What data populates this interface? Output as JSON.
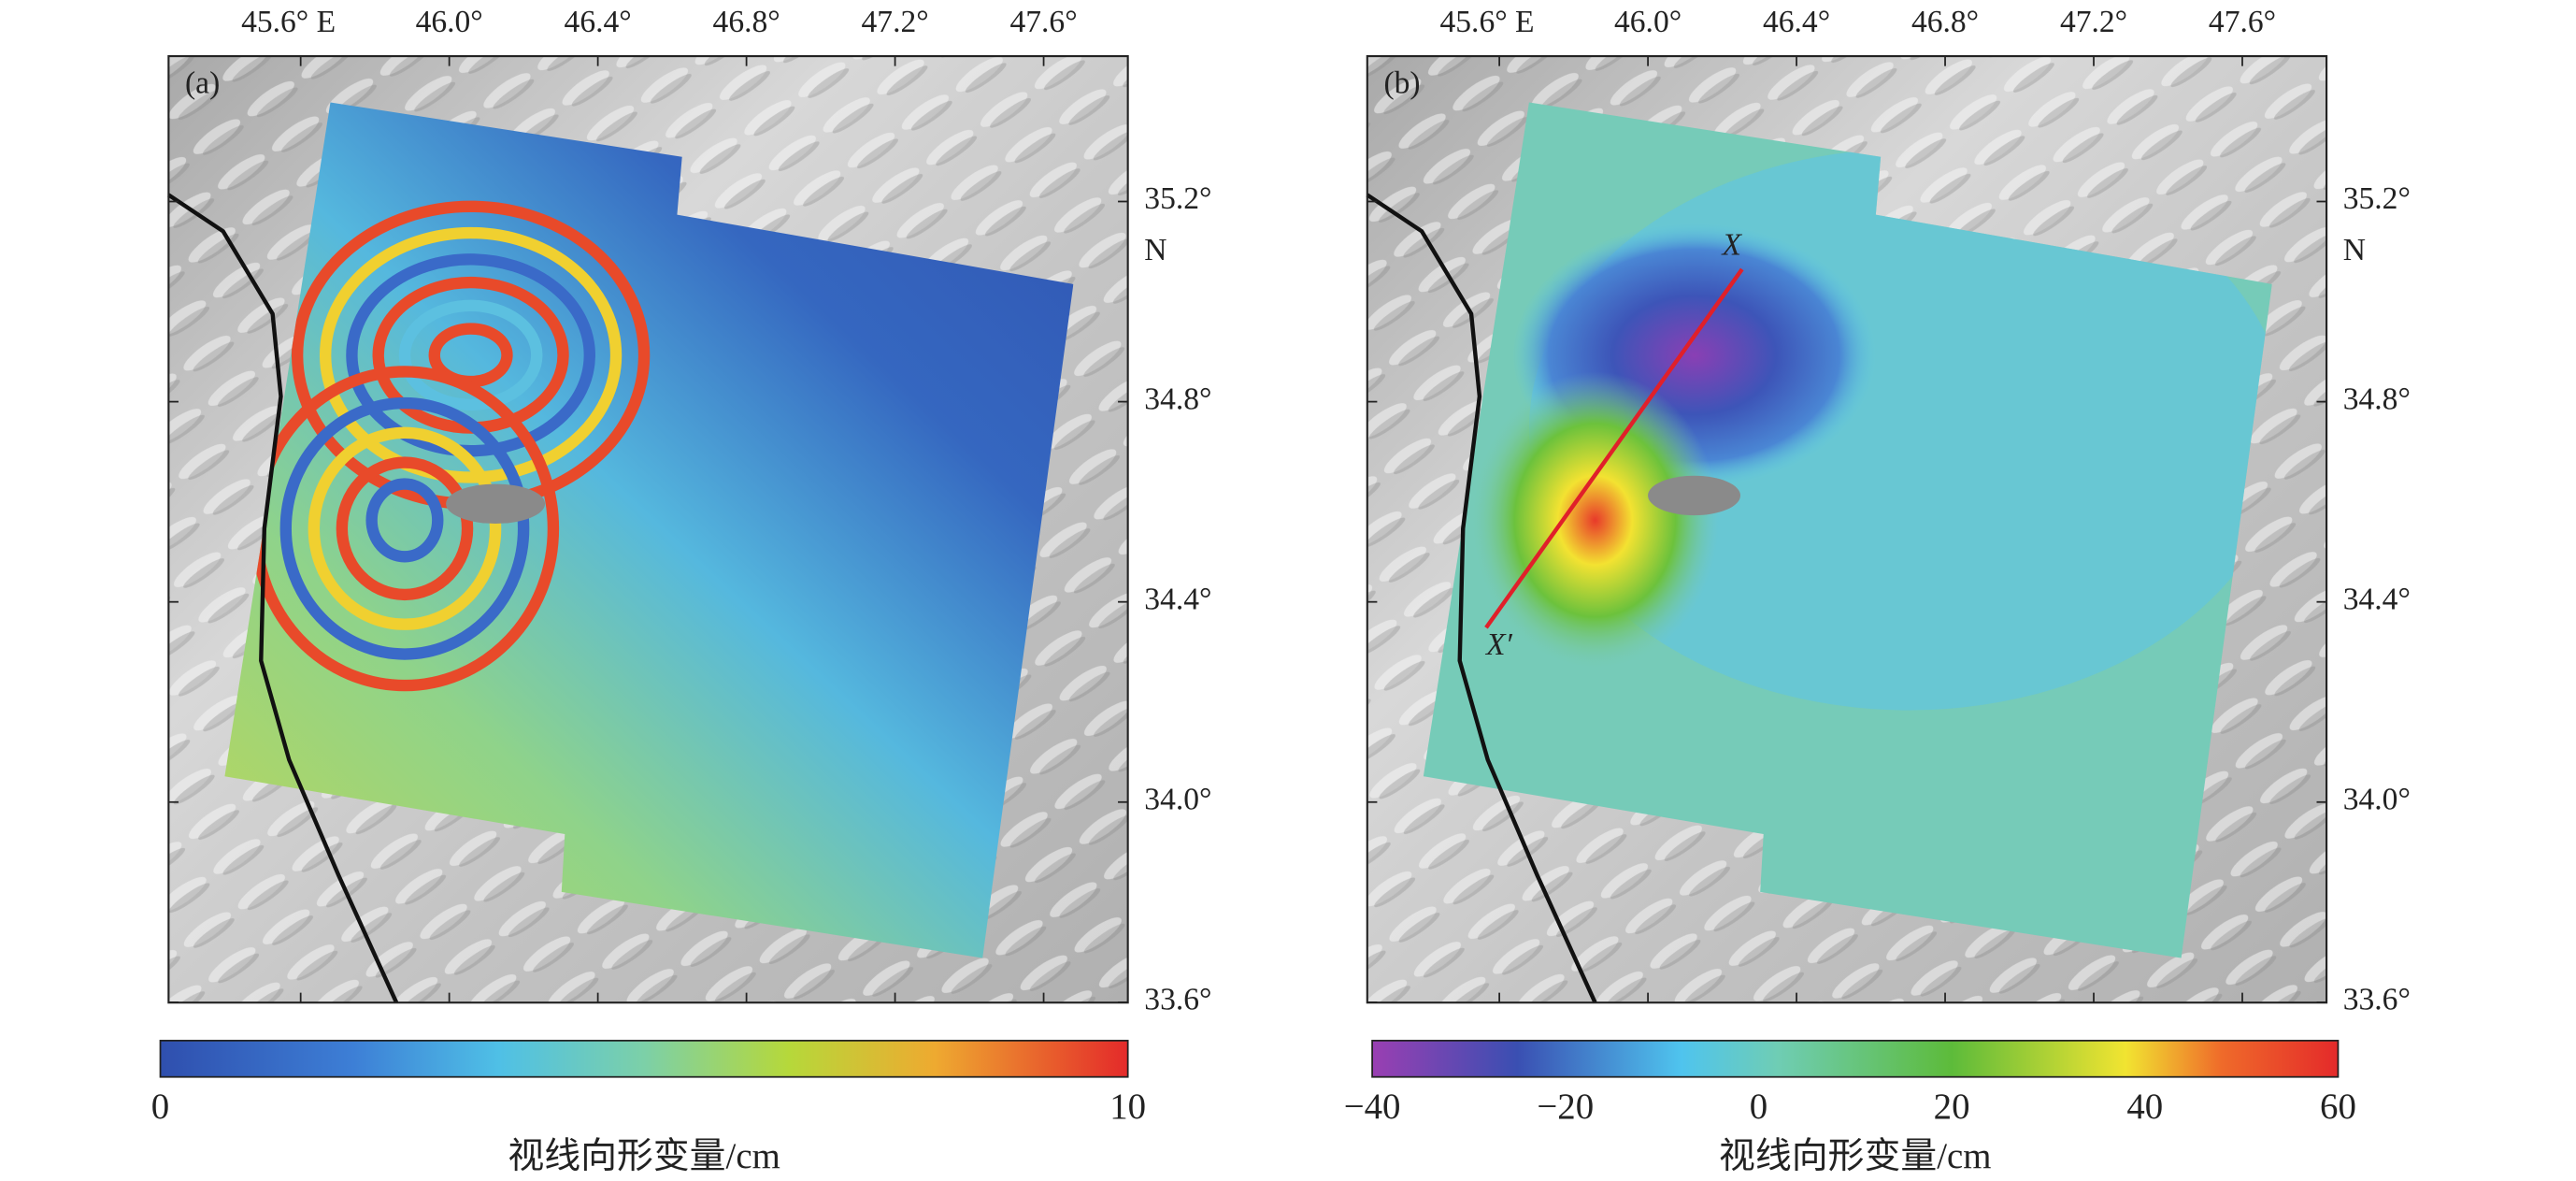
{
  "panels": [
    {
      "label": "(a)",
      "lon_ticks": [
        "45.6° E",
        "46.0°",
        "46.4°",
        "46.8°",
        "47.2°",
        "47.6°"
      ],
      "lat_ticks": [
        "35.2°",
        "34.8°",
        "34.4°",
        "34.0°",
        "33.6°"
      ],
      "lat_unit": "N",
      "colorbar": {
        "ticks": [
          "0",
          "10"
        ],
        "label": "视线向形变量/cm"
      }
    },
    {
      "label": "(b)",
      "lon_ticks": [
        "45.6° E",
        "46.0°",
        "46.4°",
        "46.8°",
        "47.2°",
        "47.6°"
      ],
      "lat_ticks": [
        "35.2°",
        "34.8°",
        "34.4°",
        "34.0°",
        "33.6°"
      ],
      "lat_unit": "N",
      "profile": {
        "start": "X",
        "end": "X′"
      },
      "colorbar": {
        "ticks": [
          "−40",
          "−20",
          "0",
          "20",
          "40",
          "60"
        ],
        "label": "视线向形变量/cm"
      }
    }
  ]
}
